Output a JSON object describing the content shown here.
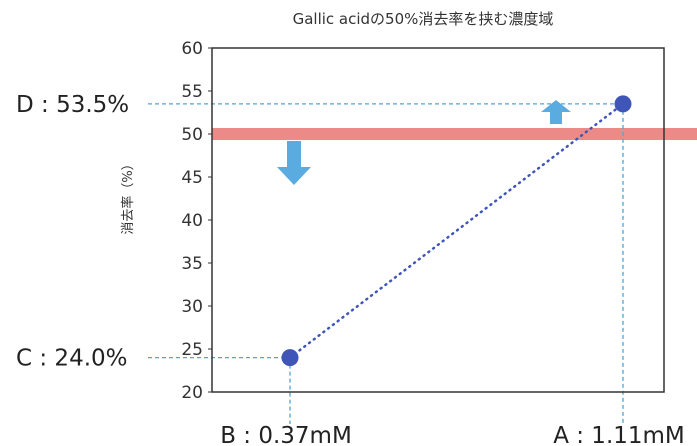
{
  "colors": {
    "frame": "#333333",
    "guide": "#4aa8d8",
    "series": "#3f56b8",
    "threshold": "#ec8a88",
    "arrow": "#5aace0"
  },
  "chart_data": {
    "type": "scatter",
    "title": "Gallic acidの50%消去率を挟む濃度域",
    "xlabel": "",
    "ylabel": "消去率（%）",
    "ylim": [
      20,
      60
    ],
    "yticks": [
      20,
      25,
      30,
      35,
      40,
      45,
      50,
      55,
      60
    ],
    "x_categories": [
      "B",
      "A"
    ],
    "threshold": {
      "y": 50
    },
    "series": [
      {
        "points": [
          {
            "x": "B",
            "y": 24.0
          },
          {
            "x": "A",
            "y": 53.5
          }
        ],
        "line_style": "dotted"
      }
    ],
    "x_callouts": [
      {
        "x": "B",
        "label": "B : 0.37mM"
      },
      {
        "x": "A",
        "label": "A : 1.11mM"
      }
    ],
    "y_callouts": [
      {
        "y": 53.5,
        "label": "D : 53.5%"
      },
      {
        "y": 24.0,
        "label": "C : 24.0%"
      }
    ],
    "arrows": [
      {
        "direction": "up",
        "at_x": "A",
        "from_y": 50
      },
      {
        "direction": "down",
        "at_x": "B",
        "from_y": 50
      }
    ]
  }
}
